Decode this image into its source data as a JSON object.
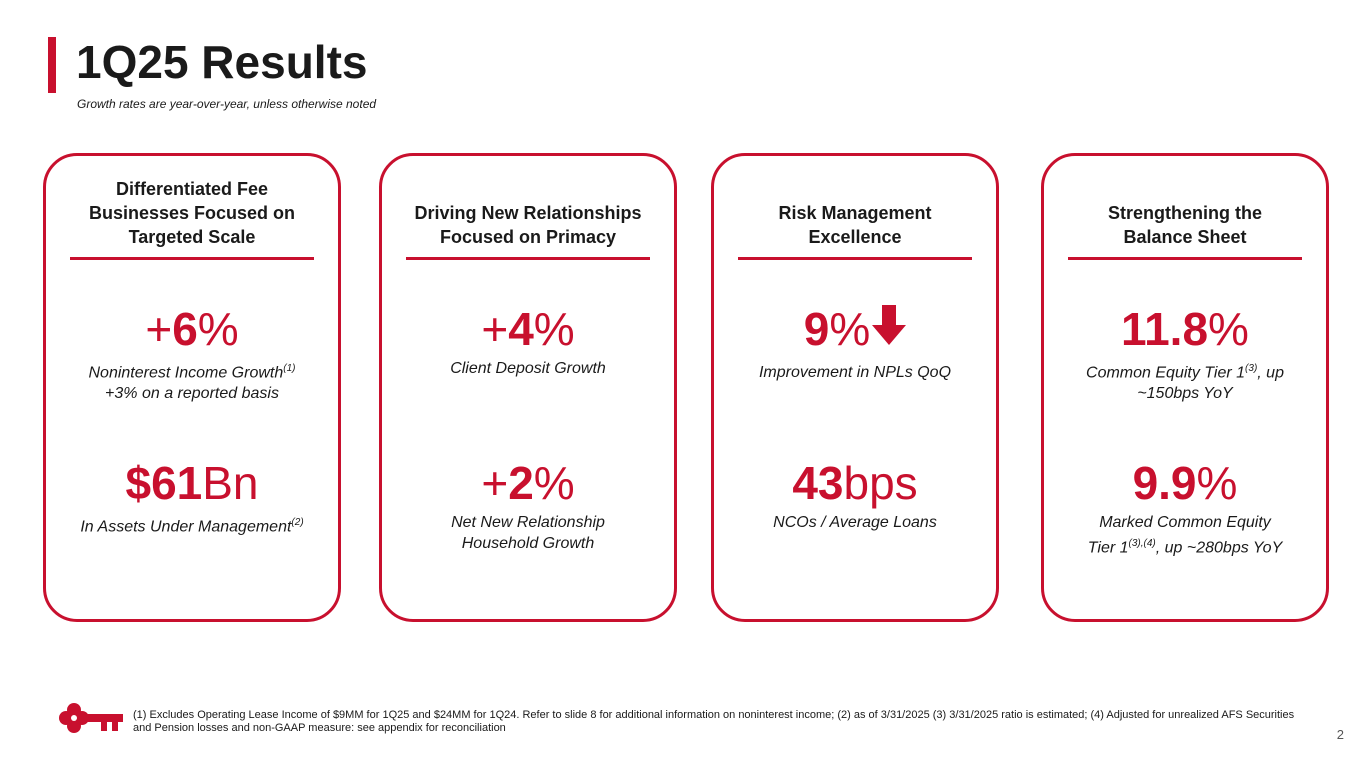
{
  "header": {
    "title": "1Q25 Results",
    "subtitle": "Growth rates are year-over-year, unless otherwise noted"
  },
  "cards": [
    {
      "title": "Differentiated Fee Businesses Focused on Targeted Scale",
      "metric1": {
        "prefix": "+",
        "value": "6",
        "suffix": "%",
        "caption_a": "Noninterest Income Growth",
        "sup": "(1)",
        "caption_b": "+3% on a reported basis"
      },
      "metric2": {
        "prefix": "",
        "value": "$61",
        "suffix": "Bn",
        "caption_a": "In Assets Under Management",
        "sup": "(2)"
      }
    },
    {
      "title": "Driving New Relationships Focused on Primacy",
      "metric1": {
        "prefix": "+",
        "value": "4",
        "suffix": "%",
        "caption_a": "Client Deposit Growth"
      },
      "metric2": {
        "prefix": "+",
        "value": "2",
        "suffix": "%",
        "caption_a": "Net New Relationship",
        "caption_b": "Household Growth"
      }
    },
    {
      "title": "Risk Management Excellence",
      "metric1": {
        "value": "9",
        "suffix": "%",
        "arrow_icon": "down-arrow-icon",
        "caption_a": "Improvement in NPLs QoQ"
      },
      "metric2": {
        "value": "43",
        "suffix": "bps",
        "caption_a": "NCOs / Average Loans"
      }
    },
    {
      "title": "Strengthening the Balance Sheet",
      "metric1": {
        "value": "11.8",
        "suffix": "%",
        "caption_a": "Common Equity Tier 1",
        "sup": "(3)",
        "caption_a2": ", up",
        "caption_b": "~150bps YoY"
      },
      "metric2": {
        "value": "9.9",
        "suffix": "%",
        "caption_a": "Marked Common Equity",
        "caption_b1": "Tier 1",
        "sup": "(3),(4)",
        "caption_b2": ", up ~280bps YoY"
      }
    }
  ],
  "footer": {
    "logo_icon": "key-logo-icon",
    "footnote": "(1) Excludes Operating Lease Income of $9MM for 1Q25 and $24MM for 1Q24. Refer to slide 8 for additional information on noninterest income; (2) as of 3/31/2025 (3) 3/31/2025 ratio is estimated; (4) Adjusted for unrealized AFS Securities and Pension losses and non-GAAP measure: see appendix for reconciliation",
    "page_number": "2"
  },
  "colors": {
    "accent": "#c8102e",
    "text": "#1a1a1a"
  }
}
